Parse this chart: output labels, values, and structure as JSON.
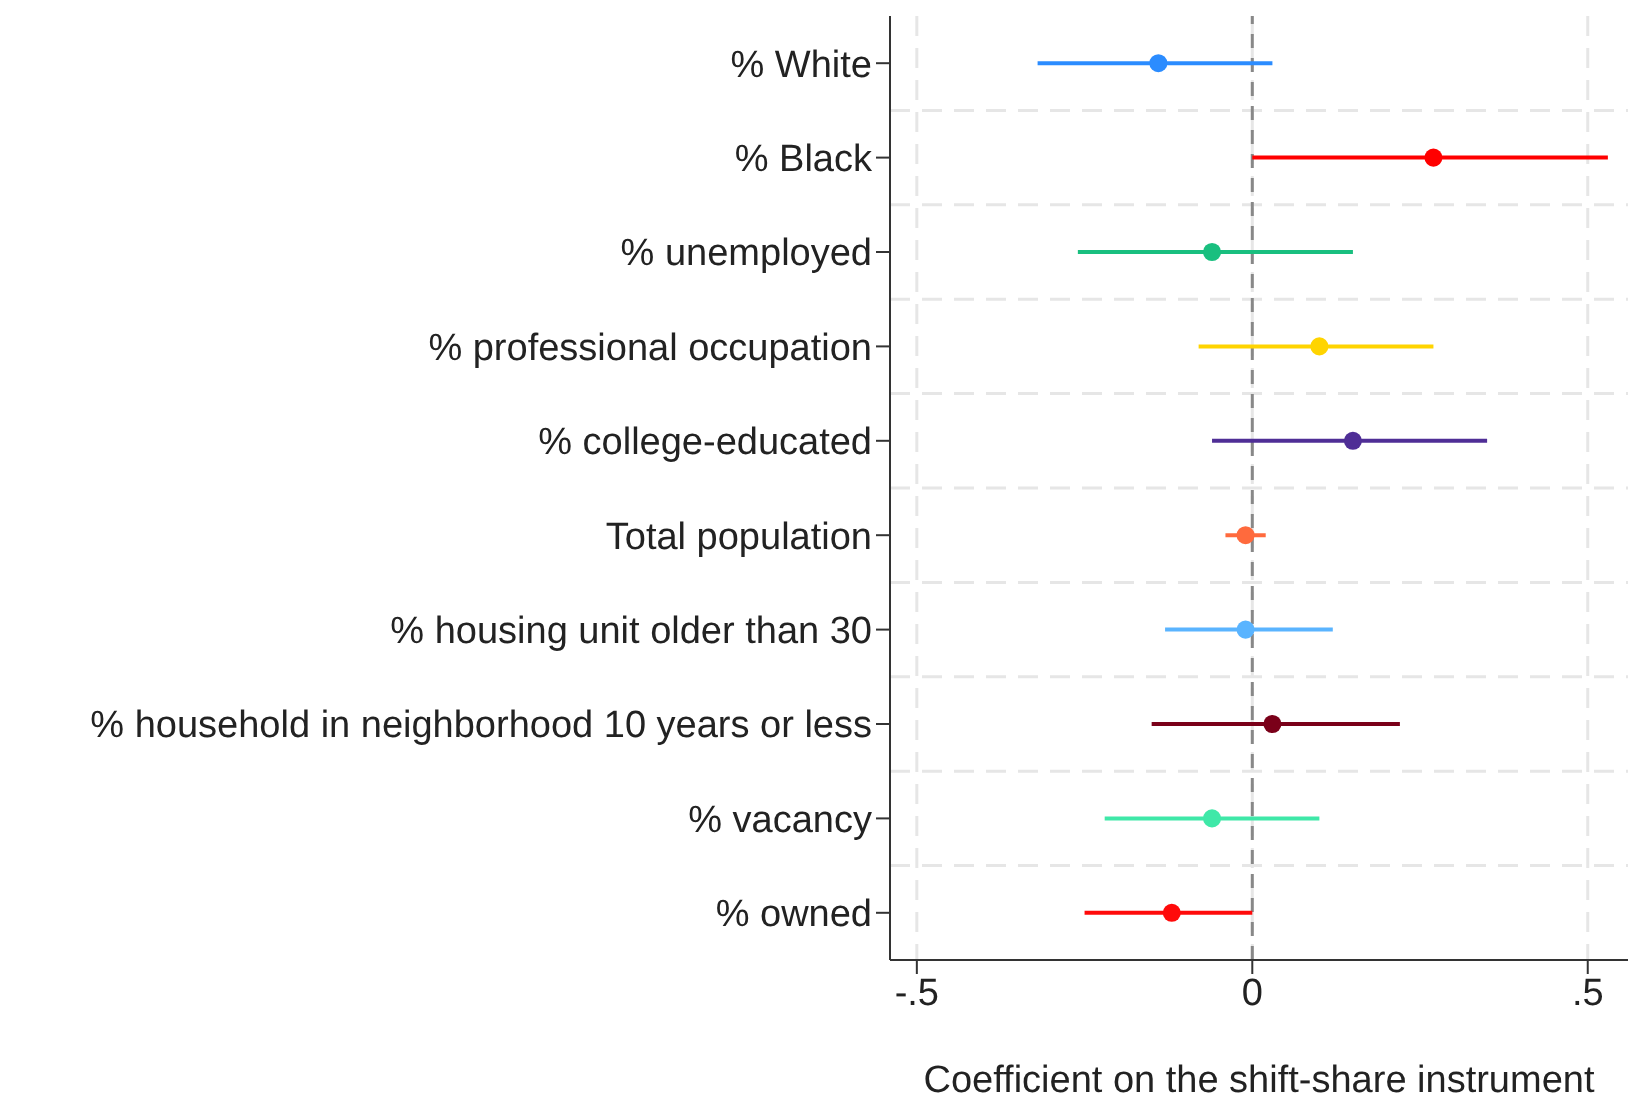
{
  "chart_data": {
    "type": "scatter",
    "xlabel": "Coefficient on the shift-share instrument",
    "categories": [
      "% White",
      "% Black",
      "% unemployed",
      "% professional occupation",
      "% college-educated",
      "Total population",
      "% housing unit older than 30",
      "% household in neighborhood 10 years or less",
      "% vacancy",
      "% owned"
    ],
    "orientation": "horizontal",
    "series": [
      {
        "values": [
          -0.14,
          0.27,
          -0.06,
          0.1,
          0.15,
          -0.01,
          -0.01,
          0.03,
          -0.06,
          -0.12
        ],
        "errors": [
          [
            -0.32,
            0.03
          ],
          [
            0.0,
            0.53
          ],
          [
            -0.26,
            0.15
          ],
          [
            -0.08,
            0.27
          ],
          [
            -0.06,
            0.35
          ],
          [
            -0.04,
            0.02
          ],
          [
            -0.13,
            0.12
          ],
          [
            -0.15,
            0.22
          ],
          [
            -0.22,
            0.1
          ],
          [
            -0.25,
            0.0
          ]
        ],
        "colors": [
          "#2b8cff",
          "#ff0000",
          "#19bf7f",
          "#ffd400",
          "#4f2e96",
          "#ff6a3d",
          "#5ab4ff",
          "#7a0019",
          "#3fe8a8",
          "#ff0a0a"
        ]
      }
    ],
    "xlim": [
      -0.54,
      0.56
    ],
    "xticks": [
      {
        "value": -0.5,
        "label": "-.5"
      },
      0,
      {
        "value": 0.5,
        "label": ".5"
      }
    ],
    "ref_lines": [
      {
        "axis": "x",
        "value": 0,
        "color": "#888888",
        "line_style": "dashed"
      }
    ],
    "grid": true,
    "marker": "circle"
  }
}
